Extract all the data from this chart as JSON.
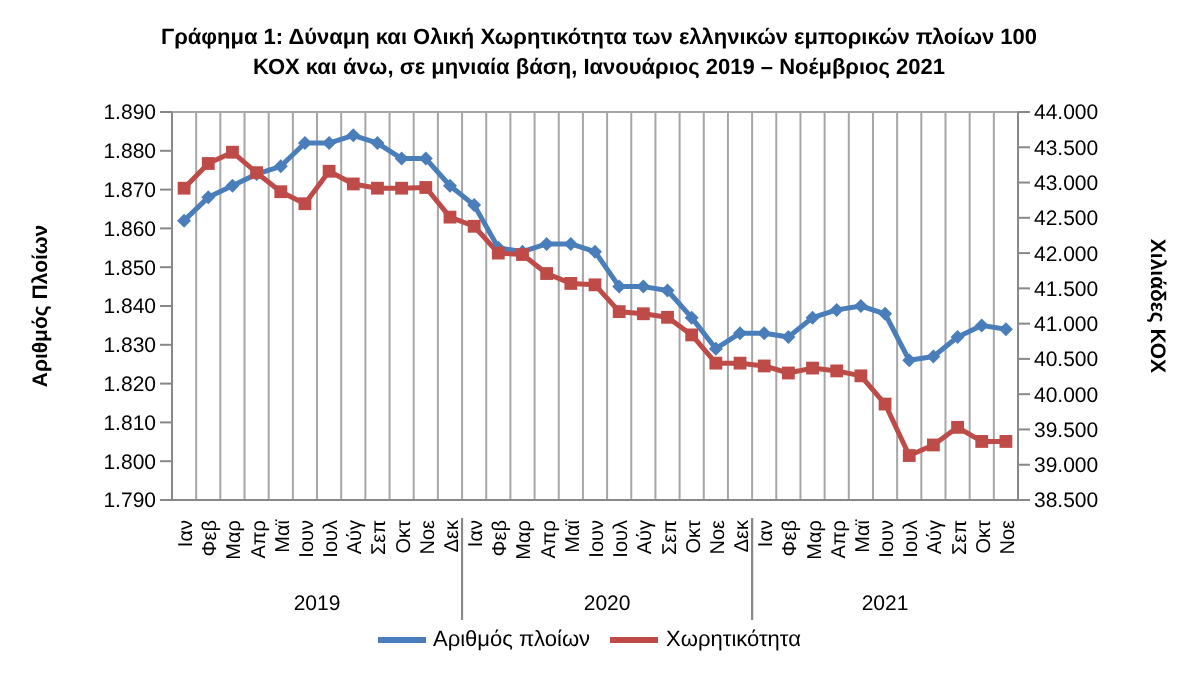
{
  "chart_data": {
    "type": "line",
    "title": "Γράφημα 1: Δύναμη και Ολική Χωρητικότητα των ελληνικών εμπορικών πλοίων 100 ΚΟΧ και άνω, σε μηνιαία βάση, Ιανουάριος 2019 – Νοέμβριος 2021",
    "categories": [
      "Ιαν",
      "Φεβ",
      "Μαρ",
      "Απρ",
      "Μαϊ",
      "Ιουν",
      "Ιουλ",
      "Αύγ",
      "Σεπ",
      "Οκτ",
      "Νοε",
      "Δεκ",
      "Ιαν",
      "Φεβ",
      "Μαρ",
      "Απρ",
      "Μαϊ",
      "Ιουν",
      "Ιουλ",
      "Αύγ",
      "Σεπ",
      "Οκτ",
      "Νοε",
      "Δεκ",
      "Ιαν",
      "Φεβ",
      "Μαρ",
      "Απρ",
      "Μαϊ",
      "Ιουν",
      "Ιουλ",
      "Αύγ",
      "Σεπ",
      "Οκτ",
      "Νοε"
    ],
    "annotations": [
      "2019",
      "2020",
      "2021"
    ],
    "series": [
      {
        "name": "Αριθμός πλοίων",
        "color": "#4a7ebb",
        "marker": "diamond",
        "values": [
          1862,
          1868,
          1871,
          1874,
          1876,
          1882,
          1882,
          1884,
          1882,
          1878,
          1878,
          1871,
          1866,
          1855,
          1854,
          1856,
          1856,
          1854,
          1845,
          1845,
          1844,
          1837,
          1829,
          1833,
          1833,
          1832,
          1837,
          1839,
          1840,
          1838,
          1826,
          1827,
          1832,
          1835,
          1834
        ]
      },
      {
        "name": "Χωρητικότητα",
        "color": "#be4b48",
        "marker": "square",
        "axis": "y2",
        "values": [
          42920,
          43270,
          43430,
          43140,
          42870,
          42700,
          43160,
          42980,
          42920,
          42920,
          42930,
          42510,
          42380,
          42000,
          41980,
          41710,
          41570,
          41550,
          41170,
          41140,
          41090,
          40840,
          40440,
          40440,
          40400,
          40300,
          40370,
          40330,
          40260,
          39860,
          39130,
          39280,
          39530,
          39330,
          39330
        ]
      }
    ],
    "ylabel": "Αριθμός Πλοίων",
    "y2label": "Χιλιάδες ΚΟΧ",
    "ylim": [
      1790,
      1890
    ],
    "yticks": [
      {
        "value": 1790,
        "label": "1.790"
      },
      {
        "value": 1800,
        "label": "1.800"
      },
      {
        "value": 1810,
        "label": "1.810"
      },
      {
        "value": 1820,
        "label": "1.820"
      },
      {
        "value": 1830,
        "label": "1.830"
      },
      {
        "value": 1840,
        "label": "1.840"
      },
      {
        "value": 1850,
        "label": "1.850"
      },
      {
        "value": 1860,
        "label": "1.860"
      },
      {
        "value": 1870,
        "label": "1.870"
      },
      {
        "value": 1880,
        "label": "1.880"
      },
      {
        "value": 1890,
        "label": "1.890"
      }
    ],
    "y2lim": [
      38500,
      44000
    ],
    "y2ticks": [
      {
        "value": 38500,
        "label": "38.500"
      },
      {
        "value": 39000,
        "label": "39.000"
      },
      {
        "value": 39500,
        "label": "39.500"
      },
      {
        "value": 40000,
        "label": "40.000"
      },
      {
        "value": 40500,
        "label": "40.500"
      },
      {
        "value": 41000,
        "label": "41.000"
      },
      {
        "value": 41500,
        "label": "41.500"
      },
      {
        "value": 42000,
        "label": "42.000"
      },
      {
        "value": 42500,
        "label": "42.500"
      },
      {
        "value": 43000,
        "label": "43.000"
      },
      {
        "value": 43500,
        "label": "43.500"
      },
      {
        "value": 44000,
        "label": "44.000"
      }
    ],
    "grid": true,
    "legend": "bottom",
    "line_style": "solid"
  }
}
